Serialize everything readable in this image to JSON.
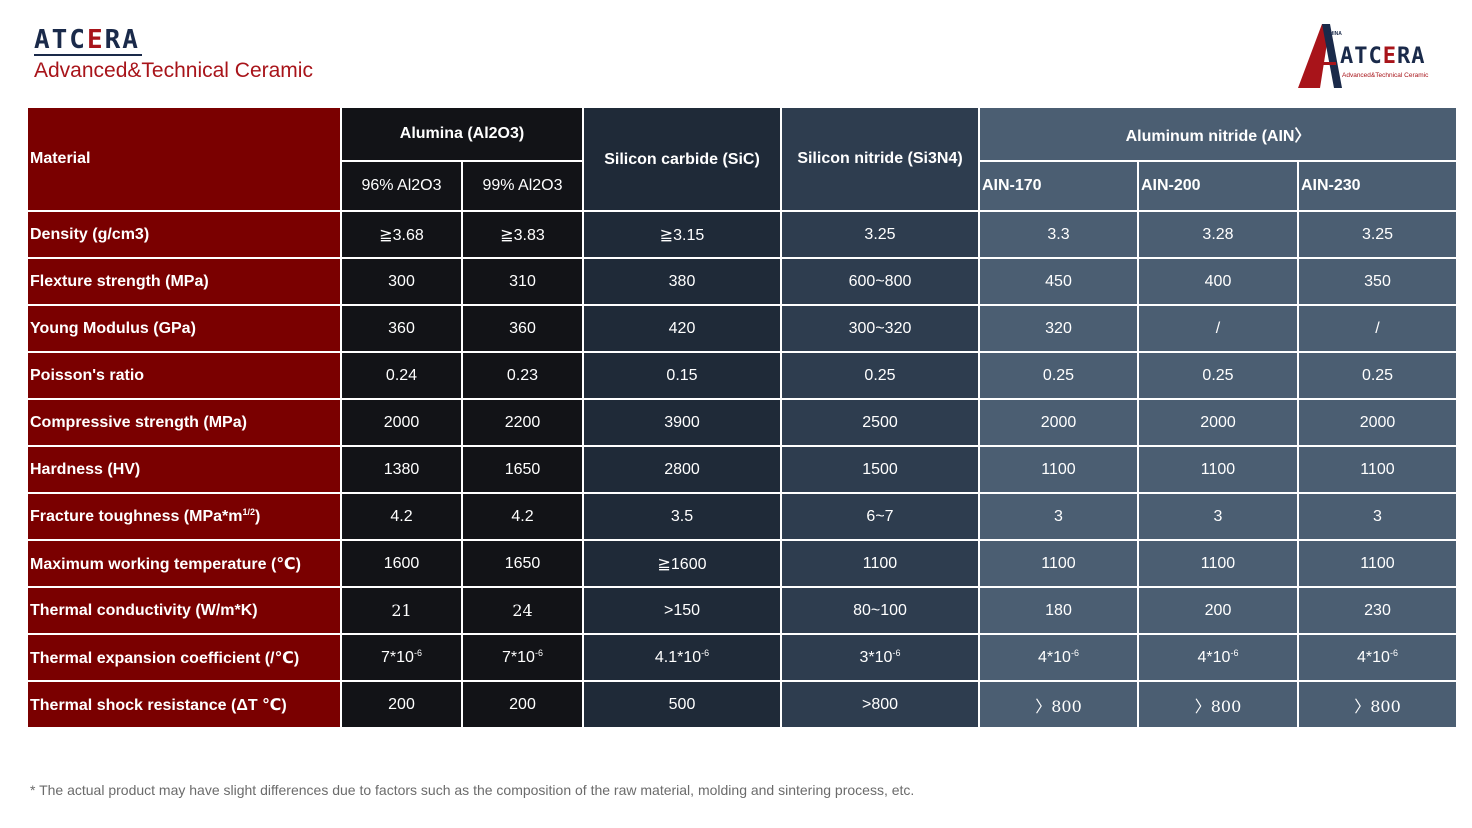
{
  "brand": {
    "name_main": "ATC",
    "name_accent": "E",
    "name_end": "RA",
    "subtitle": "Advanced&Technical Ceramic",
    "logo_country": "CHINA",
    "logo_tagline": "Advanced&Technical Ceramic"
  },
  "colors": {
    "property_column": "#7a0000",
    "alumina_columns": "#121317",
    "sic_column": "#1f2a38",
    "si3n4_column": "#2e3d4f",
    "ain_columns": "#4b5e72",
    "brand_red": "#a8141a",
    "brand_navy": "#1a2a4a"
  },
  "table": {
    "material_label": "Material",
    "groups": {
      "alumina": "Alumina (Al2O3)",
      "sic": "Silicon carbide (SiC)",
      "si3n4": "Silicon nitride (Si3N4)",
      "ain": "Aluminum nitride (AIN〉"
    },
    "subcolumns": [
      "96% Al2O3",
      "99% Al2O3",
      "AIN-170",
      "AIN-200",
      "AIN-230"
    ],
    "rows": [
      {
        "property": "Density (g/cm3)",
        "values": [
          "≧3.68",
          "≧3.83",
          "≧3.15",
          "3.25",
          "3.3",
          "3.28",
          "3.25"
        ]
      },
      {
        "property": "Flexture strength (MPa)",
        "values": [
          "300",
          "310",
          "380",
          "600~800",
          "450",
          "400",
          "350"
        ]
      },
      {
        "property": "Young Modulus (GPa)",
        "values": [
          "360",
          "360",
          "420",
          "300~320",
          "320",
          "/",
          "/"
        ]
      },
      {
        "property": "Poisson's ratio",
        "values": [
          "0.24",
          "0.23",
          "0.15",
          "0.25",
          "0.25",
          "0.25",
          "0.25"
        ]
      },
      {
        "property": "Compressive strength (MPa)",
        "values": [
          "2000",
          "2200",
          "3900",
          "2500",
          "2000",
          "2000",
          "2000"
        ]
      },
      {
        "property": "Hardness (HV)",
        "values": [
          "1380",
          "1650",
          "2800",
          "1500",
          "1100",
          "1100",
          "1100"
        ]
      },
      {
        "property": "Fracture toughness (MPa*m",
        "property_sup": "1/2",
        "property_end": ")",
        "values": [
          "4.2",
          "4.2",
          "3.5",
          "6~7",
          "3",
          "3",
          "3"
        ]
      },
      {
        "property": "Maximum working temperature (℃)",
        "values": [
          "1600",
          "1650",
          "≧1600",
          "1100",
          "1100",
          "1100",
          "1100"
        ]
      },
      {
        "property": "Thermal conductivity (W/m*K)",
        "values": [
          "21",
          "24",
          ">150",
          "80~100",
          "180",
          "200",
          "230"
        ]
      },
      {
        "property": "Thermal expansion coefficient (/℃)",
        "values": [
          "7*10",
          "7*10",
          "4.1*10",
          "3*10",
          "4*10",
          "4*10",
          "4*10"
        ],
        "exponent": "-6"
      },
      {
        "property": "Thermal shock resistance (ΔT ℃)",
        "values": [
          "200",
          "200",
          "500",
          ">800",
          "〉800",
          "〉800",
          "〉800"
        ]
      }
    ]
  },
  "footnote": "* The actual product may have slight differences due to factors such as the composition of the raw material, molding and sintering process, etc."
}
